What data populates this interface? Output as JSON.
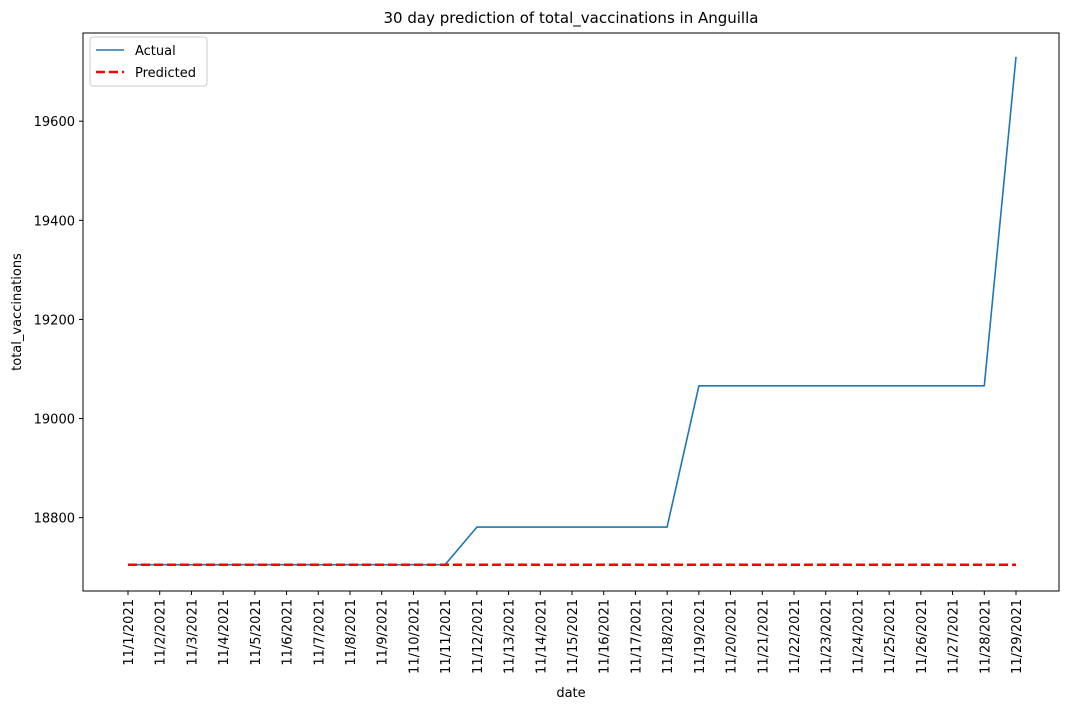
{
  "chart_data": {
    "type": "line",
    "title": "30 day prediction of total_vaccinations in Anguilla",
    "xlabel": "date",
    "ylabel": "total_vaccinations",
    "categories": [
      "11/1/2021",
      "11/2/2021",
      "11/3/2021",
      "11/4/2021",
      "11/5/2021",
      "11/6/2021",
      "11/7/2021",
      "11/8/2021",
      "11/9/2021",
      "11/10/2021",
      "11/11/2021",
      "11/12/2021",
      "11/13/2021",
      "11/14/2021",
      "11/15/2021",
      "11/16/2021",
      "11/17/2021",
      "11/18/2021",
      "11/19/2021",
      "11/20/2021",
      "11/21/2021",
      "11/22/2021",
      "11/23/2021",
      "11/24/2021",
      "11/25/2021",
      "11/26/2021",
      "11/27/2021",
      "11/28/2021",
      "11/29/2021"
    ],
    "yticks": [
      18800,
      19000,
      19200,
      19400,
      19600
    ],
    "ylim": [
      18652,
      19778
    ],
    "series": [
      {
        "name": "Actual",
        "color": "#1f77b4",
        "style": "solid",
        "values": [
          18705,
          18705,
          18705,
          18705,
          18705,
          18705,
          18705,
          18705,
          18705,
          18705,
          18705,
          18781,
          18781,
          18781,
          18781,
          18781,
          18781,
          18781,
          19066,
          19066,
          19066,
          19066,
          19066,
          19066,
          19066,
          19066,
          19066,
          19066,
          19730
        ]
      },
      {
        "name": "Predicted",
        "color": "#ff0000",
        "style": "dashed",
        "values": [
          18705,
          18705,
          18705,
          18705,
          18705,
          18705,
          18705,
          18705,
          18705,
          18705,
          18705,
          18705,
          18705,
          18705,
          18705,
          18705,
          18705,
          18705,
          18705,
          18705,
          18705,
          18705,
          18705,
          18705,
          18705,
          18705,
          18705,
          18705,
          18705
        ]
      }
    ],
    "legend_position": "top-left",
    "grid": false
  }
}
